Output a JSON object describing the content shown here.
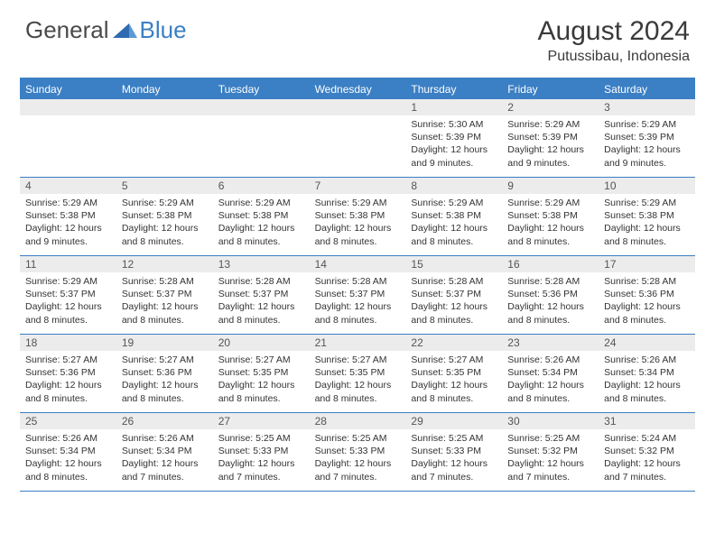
{
  "logo": {
    "text_gray": "General",
    "text_blue": "Blue"
  },
  "title": "August 2024",
  "location": "Putussibau, Indonesia",
  "accent_color": "#3b7fc4",
  "header_bg": "#3b7fc4",
  "daynum_bg": "#ececec",
  "days_of_week": [
    "Sunday",
    "Monday",
    "Tuesday",
    "Wednesday",
    "Thursday",
    "Friday",
    "Saturday"
  ],
  "weeks": [
    [
      null,
      null,
      null,
      null,
      {
        "n": "1",
        "sr": "Sunrise: 5:30 AM",
        "ss": "Sunset: 5:39 PM",
        "dl": "Daylight: 12 hours and 9 minutes."
      },
      {
        "n": "2",
        "sr": "Sunrise: 5:29 AM",
        "ss": "Sunset: 5:39 PM",
        "dl": "Daylight: 12 hours and 9 minutes."
      },
      {
        "n": "3",
        "sr": "Sunrise: 5:29 AM",
        "ss": "Sunset: 5:39 PM",
        "dl": "Daylight: 12 hours and 9 minutes."
      }
    ],
    [
      {
        "n": "4",
        "sr": "Sunrise: 5:29 AM",
        "ss": "Sunset: 5:38 PM",
        "dl": "Daylight: 12 hours and 9 minutes."
      },
      {
        "n": "5",
        "sr": "Sunrise: 5:29 AM",
        "ss": "Sunset: 5:38 PM",
        "dl": "Daylight: 12 hours and 8 minutes."
      },
      {
        "n": "6",
        "sr": "Sunrise: 5:29 AM",
        "ss": "Sunset: 5:38 PM",
        "dl": "Daylight: 12 hours and 8 minutes."
      },
      {
        "n": "7",
        "sr": "Sunrise: 5:29 AM",
        "ss": "Sunset: 5:38 PM",
        "dl": "Daylight: 12 hours and 8 minutes."
      },
      {
        "n": "8",
        "sr": "Sunrise: 5:29 AM",
        "ss": "Sunset: 5:38 PM",
        "dl": "Daylight: 12 hours and 8 minutes."
      },
      {
        "n": "9",
        "sr": "Sunrise: 5:29 AM",
        "ss": "Sunset: 5:38 PM",
        "dl": "Daylight: 12 hours and 8 minutes."
      },
      {
        "n": "10",
        "sr": "Sunrise: 5:29 AM",
        "ss": "Sunset: 5:38 PM",
        "dl": "Daylight: 12 hours and 8 minutes."
      }
    ],
    [
      {
        "n": "11",
        "sr": "Sunrise: 5:29 AM",
        "ss": "Sunset: 5:37 PM",
        "dl": "Daylight: 12 hours and 8 minutes."
      },
      {
        "n": "12",
        "sr": "Sunrise: 5:28 AM",
        "ss": "Sunset: 5:37 PM",
        "dl": "Daylight: 12 hours and 8 minutes."
      },
      {
        "n": "13",
        "sr": "Sunrise: 5:28 AM",
        "ss": "Sunset: 5:37 PM",
        "dl": "Daylight: 12 hours and 8 minutes."
      },
      {
        "n": "14",
        "sr": "Sunrise: 5:28 AM",
        "ss": "Sunset: 5:37 PM",
        "dl": "Daylight: 12 hours and 8 minutes."
      },
      {
        "n": "15",
        "sr": "Sunrise: 5:28 AM",
        "ss": "Sunset: 5:37 PM",
        "dl": "Daylight: 12 hours and 8 minutes."
      },
      {
        "n": "16",
        "sr": "Sunrise: 5:28 AM",
        "ss": "Sunset: 5:36 PM",
        "dl": "Daylight: 12 hours and 8 minutes."
      },
      {
        "n": "17",
        "sr": "Sunrise: 5:28 AM",
        "ss": "Sunset: 5:36 PM",
        "dl": "Daylight: 12 hours and 8 minutes."
      }
    ],
    [
      {
        "n": "18",
        "sr": "Sunrise: 5:27 AM",
        "ss": "Sunset: 5:36 PM",
        "dl": "Daylight: 12 hours and 8 minutes."
      },
      {
        "n": "19",
        "sr": "Sunrise: 5:27 AM",
        "ss": "Sunset: 5:36 PM",
        "dl": "Daylight: 12 hours and 8 minutes."
      },
      {
        "n": "20",
        "sr": "Sunrise: 5:27 AM",
        "ss": "Sunset: 5:35 PM",
        "dl": "Daylight: 12 hours and 8 minutes."
      },
      {
        "n": "21",
        "sr": "Sunrise: 5:27 AM",
        "ss": "Sunset: 5:35 PM",
        "dl": "Daylight: 12 hours and 8 minutes."
      },
      {
        "n": "22",
        "sr": "Sunrise: 5:27 AM",
        "ss": "Sunset: 5:35 PM",
        "dl": "Daylight: 12 hours and 8 minutes."
      },
      {
        "n": "23",
        "sr": "Sunrise: 5:26 AM",
        "ss": "Sunset: 5:34 PM",
        "dl": "Daylight: 12 hours and 8 minutes."
      },
      {
        "n": "24",
        "sr": "Sunrise: 5:26 AM",
        "ss": "Sunset: 5:34 PM",
        "dl": "Daylight: 12 hours and 8 minutes."
      }
    ],
    [
      {
        "n": "25",
        "sr": "Sunrise: 5:26 AM",
        "ss": "Sunset: 5:34 PM",
        "dl": "Daylight: 12 hours and 8 minutes."
      },
      {
        "n": "26",
        "sr": "Sunrise: 5:26 AM",
        "ss": "Sunset: 5:34 PM",
        "dl": "Daylight: 12 hours and 7 minutes."
      },
      {
        "n": "27",
        "sr": "Sunrise: 5:25 AM",
        "ss": "Sunset: 5:33 PM",
        "dl": "Daylight: 12 hours and 7 minutes."
      },
      {
        "n": "28",
        "sr": "Sunrise: 5:25 AM",
        "ss": "Sunset: 5:33 PM",
        "dl": "Daylight: 12 hours and 7 minutes."
      },
      {
        "n": "29",
        "sr": "Sunrise: 5:25 AM",
        "ss": "Sunset: 5:33 PM",
        "dl": "Daylight: 12 hours and 7 minutes."
      },
      {
        "n": "30",
        "sr": "Sunrise: 5:25 AM",
        "ss": "Sunset: 5:32 PM",
        "dl": "Daylight: 12 hours and 7 minutes."
      },
      {
        "n": "31",
        "sr": "Sunrise: 5:24 AM",
        "ss": "Sunset: 5:32 PM",
        "dl": "Daylight: 12 hours and 7 minutes."
      }
    ]
  ]
}
